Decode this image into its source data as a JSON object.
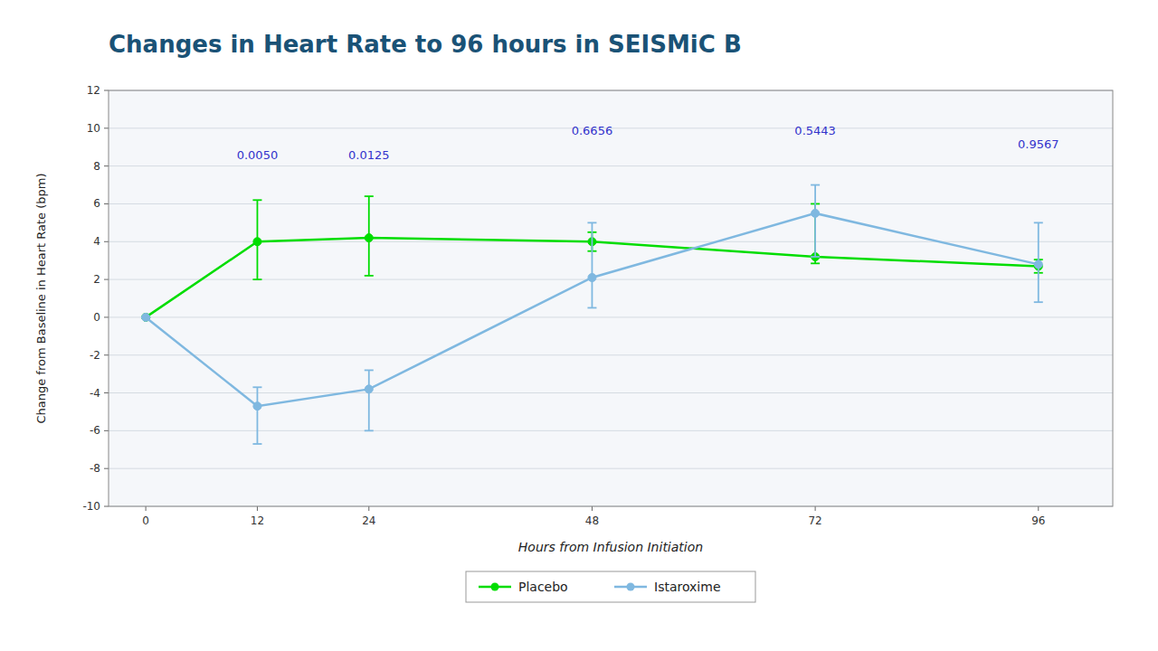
{
  "chart_data": {
    "type": "line",
    "title": "Changes in Heart Rate to 96 hours in SEISMiC B",
    "x_label": "Hours from Infusion Initiation",
    "y_label": "Change from Baseline in Heart Rate (bpm)",
    "x": [
      0,
      12,
      24,
      48,
      72,
      96
    ],
    "series": [
      {
        "name": "Placebo",
        "color": "#00dd00",
        "marker": "circle",
        "line_style": "solid",
        "values": [
          0.0,
          4.0,
          4.2,
          4.0,
          3.2,
          2.7
        ],
        "error_low": [
          0.0,
          2.0,
          2.0,
          0.5,
          0.35,
          0.35
        ],
        "error_high": [
          0.0,
          2.2,
          2.2,
          0.5,
          2.8,
          0.35
        ]
      },
      {
        "name": "Istaroxime",
        "color": "#7fb8e0",
        "marker": "circle",
        "line_style": "solid",
        "values": [
          0.0,
          -4.7,
          -3.8,
          2.1,
          5.5,
          2.8
        ],
        "error_low": [
          0.0,
          2.0,
          2.2,
          1.6,
          2.3,
          2.0
        ],
        "error_high": [
          0.0,
          1.0,
          1.0,
          2.9,
          1.5,
          2.2
        ]
      }
    ],
    "annotations": [
      {
        "x": 12,
        "y": 8.2,
        "text": "0.0050",
        "color": "#3333cc"
      },
      {
        "x": 24,
        "y": 8.2,
        "text": "0.0125",
        "color": "#3333cc"
      },
      {
        "x": 48,
        "y": 9.5,
        "text": "0.6656",
        "color": "#3333cc"
      },
      {
        "x": 72,
        "y": 9.5,
        "text": "0.5443",
        "color": "#3333cc"
      },
      {
        "x": 96,
        "y": 8.8,
        "text": "0.9567",
        "color": "#3333cc"
      }
    ],
    "xlim": [
      -4,
      104
    ],
    "xticks": [
      0,
      12,
      24,
      48,
      72,
      96
    ],
    "ylim": [
      -10,
      12
    ],
    "yticks": [
      -10,
      -8,
      -6,
      -4,
      -2,
      0,
      2,
      4,
      6,
      8,
      10,
      12
    ],
    "grid": true,
    "legend": "bottom"
  }
}
